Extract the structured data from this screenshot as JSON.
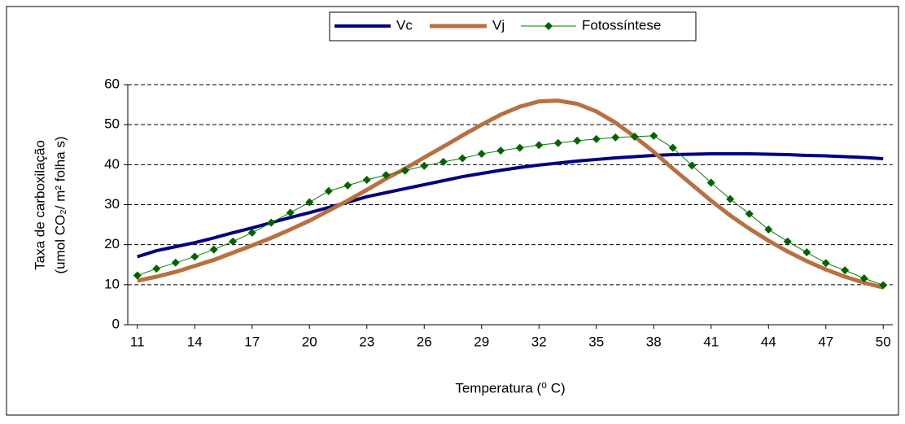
{
  "chart_data": {
    "type": "line",
    "x": [
      11,
      12,
      13,
      14,
      15,
      16,
      17,
      18,
      19,
      20,
      21,
      22,
      23,
      24,
      25,
      26,
      27,
      28,
      29,
      30,
      31,
      32,
      33,
      34,
      35,
      36,
      37,
      38,
      39,
      40,
      41,
      42,
      43,
      44,
      45,
      46,
      47,
      48,
      49,
      50
    ],
    "series": [
      {
        "name": "Vc",
        "color": "#000080",
        "values": [
          17,
          18.5,
          19.5,
          20.5,
          21.7,
          23,
          24.2,
          25.5,
          26.8,
          28,
          29.3,
          30.6,
          32,
          33,
          34,
          35,
          36,
          37,
          37.8,
          38.6,
          39.3,
          39.9,
          40.4,
          40.9,
          41.3,
          41.7,
          42,
          42.3,
          42.5,
          42.6,
          42.7,
          42.7,
          42.7,
          42.6,
          42.5,
          42.3,
          42.2,
          42,
          41.8,
          41.5
        ]
      },
      {
        "name": "Vj",
        "color": "#b8703f",
        "values": [
          11,
          12,
          13.2,
          14.7,
          16.2,
          18,
          19.8,
          21.7,
          23.8,
          26,
          28.5,
          31,
          33.7,
          36.5,
          39,
          41.8,
          44.5,
          47.3,
          50,
          52.5,
          54.5,
          55.8,
          56,
          55.2,
          53.3,
          50.5,
          47,
          43.2,
          39,
          35,
          31,
          27.3,
          24,
          21,
          18.3,
          15.9,
          13.8,
          12,
          10.5,
          9.3
        ]
      },
      {
        "name": "Fotossíntese",
        "color": "#008000",
        "values": [
          12.3,
          14,
          15.5,
          17,
          18.8,
          20.8,
          23,
          25.5,
          28,
          30.6,
          33.4,
          34.8,
          36.2,
          37.4,
          38.5,
          39.7,
          40.7,
          41.6,
          42.7,
          43.5,
          44.2,
          44.9,
          45.4,
          46,
          46.4,
          46.8,
          47,
          47.2,
          44.2,
          39.8,
          35.5,
          31.4,
          27.7,
          23.8,
          20.8,
          18.1,
          15.4,
          13.6,
          11.6,
          9.9
        ]
      }
    ],
    "xlabel": "Temperatura (⁰ C)",
    "ylabel": [
      "Taxa de carboxilação",
      "(umol CO₂/ m² folha s)"
    ],
    "xlim": [
      10.5,
      50.5
    ],
    "xticks": [
      11,
      14,
      17,
      20,
      23,
      26,
      29,
      32,
      35,
      38,
      41,
      44,
      47,
      50
    ],
    "ylim": [
      0,
      60
    ],
    "yticks": [
      0,
      10,
      20,
      30,
      40,
      50,
      60
    ],
    "grid": true,
    "legend": "top"
  }
}
